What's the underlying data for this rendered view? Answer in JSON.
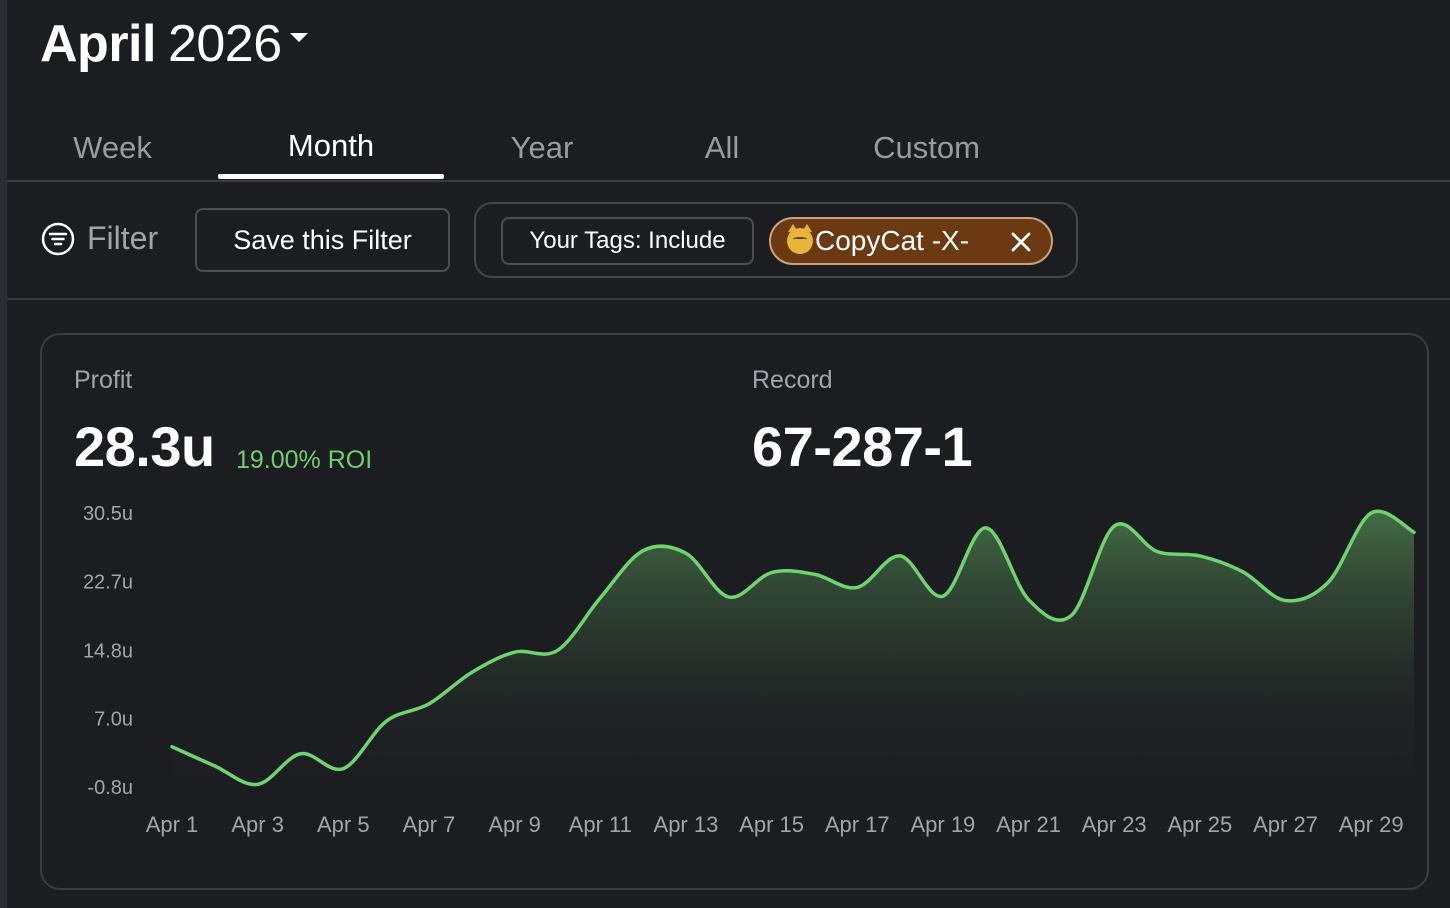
{
  "header": {
    "month": "April",
    "year": "2026"
  },
  "tabs": [
    {
      "label": "Week",
      "active": false
    },
    {
      "label": "Month",
      "active": true
    },
    {
      "label": "Year",
      "active": false
    },
    {
      "label": "All",
      "active": false
    },
    {
      "label": "Custom",
      "active": false
    }
  ],
  "filter": {
    "filter_label": "Filter",
    "save_label": "Save this Filter",
    "tag_mode_label": "Your Tags: Include",
    "tag_chip_label": "CopyCat -X-",
    "tag_chip_color": "#6b3a12",
    "tag_chip_icon": "cat-emoji-icon"
  },
  "stats": {
    "profit_label": "Profit",
    "profit_value": "28.3u",
    "roi_value": "19.00% ROI",
    "record_label": "Record",
    "record_value": "67-287-1"
  },
  "colors": {
    "line": "#6fd36f",
    "roi": "#6fcf6f",
    "background": "#1c1d21"
  },
  "chart_data": {
    "type": "area",
    "x": [
      "Apr 1",
      "Apr 2",
      "Apr 3",
      "Apr 4",
      "Apr 5",
      "Apr 6",
      "Apr 7",
      "Apr 8",
      "Apr 9",
      "Apr 10",
      "Apr 11",
      "Apr 12",
      "Apr 13",
      "Apr 14",
      "Apr 15",
      "Apr 16",
      "Apr 17",
      "Apr 18",
      "Apr 19",
      "Apr 20",
      "Apr 21",
      "Apr 22",
      "Apr 23",
      "Apr 24",
      "Apr 25",
      "Apr 26",
      "Apr 27",
      "Apr 28",
      "Apr 29",
      "Apr 30"
    ],
    "values": [
      3.8,
      1.6,
      -0.5,
      3.0,
      1.3,
      6.7,
      8.7,
      12.3,
      14.6,
      14.8,
      20.8,
      26.2,
      25.9,
      20.9,
      23.7,
      23.5,
      22.0,
      25.6,
      21.0,
      28.8,
      20.6,
      18.8,
      29.0,
      26.1,
      25.6,
      23.8,
      20.5,
      22.6,
      30.5,
      28.3
    ],
    "y_ticks": [
      "30.5u",
      "22.7u",
      "14.8u",
      "7.0u",
      "-0.8u"
    ],
    "y_tick_values": [
      30.5,
      22.7,
      14.8,
      7.0,
      -0.8
    ],
    "x_tick_labels": [
      "Apr 1",
      "Apr 3",
      "Apr 5",
      "Apr 7",
      "Apr 9",
      "Apr 11",
      "Apr 13",
      "Apr 15",
      "Apr 17",
      "Apr 19",
      "Apr 21",
      "Apr 23",
      "Apr 25",
      "Apr 27",
      "Apr 29"
    ],
    "ylim": [
      -0.8,
      30.5
    ],
    "unit": "u",
    "grid": false,
    "legend": false
  }
}
